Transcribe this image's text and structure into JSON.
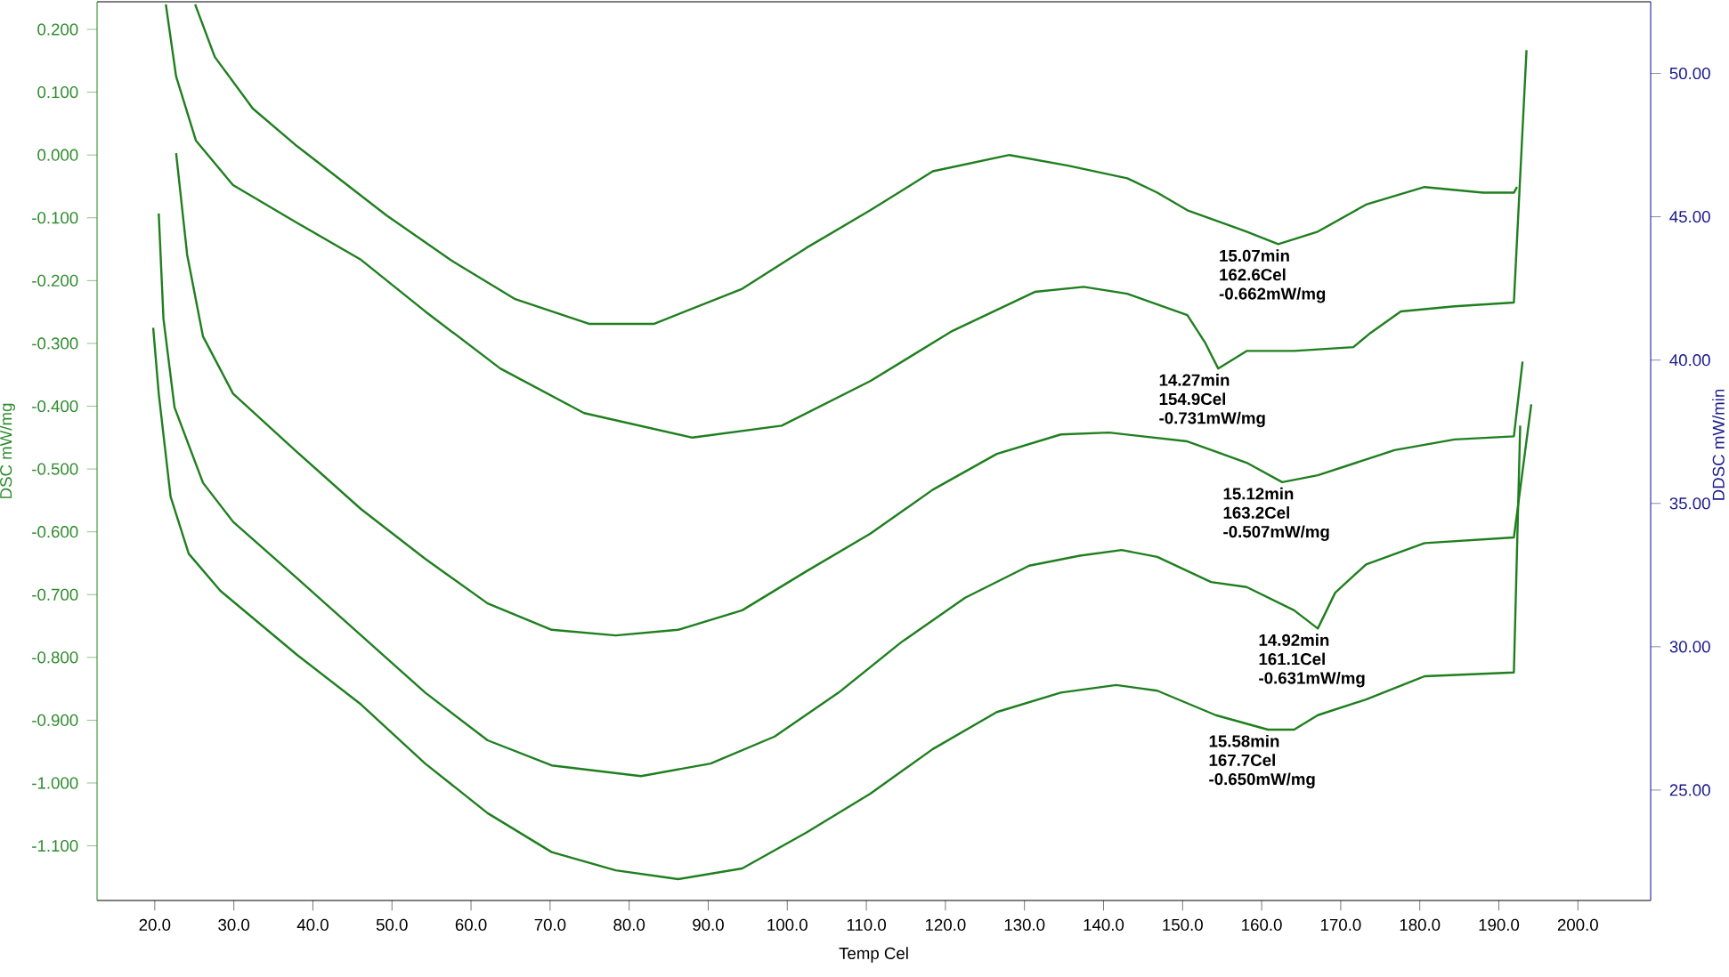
{
  "chart_data": {
    "type": "line",
    "xlabel": "Temp Cel",
    "ylabel": "DSC mW/mg",
    "y2label": "DDSC mW/min",
    "xlim": [
      12.7,
      209.2
    ],
    "ylim": [
      -1.187,
      0.244
    ],
    "y2lim": [
      21.15,
      52.5
    ],
    "xticks": [
      {
        "value": 20,
        "label": "20.0"
      },
      {
        "value": 30,
        "label": "30.0"
      },
      {
        "value": 40,
        "label": "40.0"
      },
      {
        "value": 50,
        "label": "50.0"
      },
      {
        "value": 60,
        "label": "60.0"
      },
      {
        "value": 70,
        "label": "70.0"
      },
      {
        "value": 80,
        "label": "80.0"
      },
      {
        "value": 90,
        "label": "90.0"
      },
      {
        "value": 100,
        "label": "100.0"
      },
      {
        "value": 110,
        "label": "110.0"
      },
      {
        "value": 120,
        "label": "120.0"
      },
      {
        "value": 130,
        "label": "130.0"
      },
      {
        "value": 140,
        "label": "140.0"
      },
      {
        "value": 150,
        "label": "150.0"
      },
      {
        "value": 160,
        "label": "160.0"
      },
      {
        "value": 170,
        "label": "170.0"
      },
      {
        "value": 180,
        "label": "180.0"
      },
      {
        "value": 190,
        "label": "190.0"
      },
      {
        "value": 200,
        "label": "200.0"
      }
    ],
    "yticks": [
      {
        "value": 0.2,
        "label": "0.200"
      },
      {
        "value": 0.1,
        "label": "0.100"
      },
      {
        "value": 0,
        "label": "0.000"
      },
      {
        "value": -0.1,
        "label": "-0.100"
      },
      {
        "value": -0.2,
        "label": "-0.200"
      },
      {
        "value": -0.3,
        "label": "-0.300"
      },
      {
        "value": -0.4,
        "label": "-0.400"
      },
      {
        "value": -0.5,
        "label": "-0.500"
      },
      {
        "value": -0.6,
        "label": "-0.600"
      },
      {
        "value": -0.7,
        "label": "-0.700"
      },
      {
        "value": -0.8,
        "label": "-0.800"
      },
      {
        "value": -0.9,
        "label": "-0.900"
      },
      {
        "value": -1.0,
        "label": "-1.000"
      },
      {
        "value": -1.1,
        "label": "-1.100"
      }
    ],
    "y2ticks": [
      {
        "value": 25,
        "label": "25.00"
      },
      {
        "value": 30,
        "label": "30.00"
      },
      {
        "value": 35,
        "label": "35.00"
      },
      {
        "value": 40,
        "label": "40.00"
      },
      {
        "value": 45,
        "label": "45.00"
      },
      {
        "value": 50,
        "label": "50.00"
      }
    ],
    "series": [
      {
        "color": "#1f7f1f",
        "x": [
          25.1,
          27.6,
          32.4,
          38.0,
          49.3,
          57.4,
          65.5,
          75.0,
          83.1,
          94.3,
          102.4,
          110.5,
          118.4,
          128.1,
          135.5,
          143.0,
          146.8,
          150.6,
          158.1,
          162.1,
          167.1,
          173.2,
          180.6,
          188.0,
          191.9,
          192.3
        ],
        "values": [
          0.24,
          0.156,
          0.074,
          0.014,
          -0.096,
          -0.167,
          -0.229,
          -0.269,
          -0.269,
          -0.213,
          -0.148,
          -0.088,
          -0.026,
          0.0,
          -0.017,
          -0.037,
          -0.06,
          -0.088,
          -0.122,
          -0.142,
          -0.122,
          -0.079,
          -0.051,
          -0.06,
          -0.06,
          -0.051
        ]
      },
      {
        "color": "#1f7f1f",
        "x": [
          21.4,
          22.7,
          25.2,
          29.9,
          38.0,
          46.1,
          54.2,
          63.7,
          74.3,
          88.0,
          99.3,
          110.5,
          120.9,
          131.3,
          137.5,
          143.0,
          150.6,
          152.9,
          154.5,
          158.1,
          164.1,
          171.6,
          173.8,
          177.6,
          184.4,
          191.9,
          193.5
        ],
        "values": [
          0.24,
          0.125,
          0.023,
          -0.048,
          -0.108,
          -0.167,
          -0.249,
          -0.34,
          -0.411,
          -0.45,
          -0.431,
          -0.36,
          -0.28,
          -0.218,
          -0.21,
          -0.221,
          -0.255,
          -0.3,
          -0.34,
          -0.312,
          -0.312,
          -0.306,
          -0.283,
          -0.249,
          -0.241,
          -0.235,
          0.167
        ]
      },
      {
        "color": "#1f7f1f",
        "x": [
          22.7,
          24.1,
          26.1,
          29.9,
          38.0,
          46.1,
          54.2,
          62.1,
          70.2,
          78.3,
          86.2,
          94.3,
          102.4,
          110.5,
          118.4,
          126.5,
          134.6,
          140.7,
          150.6,
          158.1,
          162.6,
          167.1,
          176.8,
          184.4,
          191.9,
          193.0
        ],
        "values": [
          0.003,
          -0.159,
          -0.289,
          -0.38,
          -0.473,
          -0.564,
          -0.643,
          -0.714,
          -0.756,
          -0.765,
          -0.756,
          -0.725,
          -0.663,
          -0.603,
          -0.533,
          -0.476,
          -0.445,
          -0.442,
          -0.456,
          -0.49,
          -0.521,
          -0.51,
          -0.47,
          -0.453,
          -0.448,
          -0.329
        ]
      },
      {
        "color": "#1f7f1f",
        "x": [
          20.5,
          21.1,
          22.5,
          26.1,
          29.9,
          38.0,
          46.1,
          54.2,
          62.1,
          70.2,
          81.5,
          90.3,
          98.4,
          106.5,
          114.4,
          122.5,
          130.6,
          137.0,
          142.3,
          146.8,
          153.6,
          158.1,
          164.1,
          167.1,
          169.3,
          173.2,
          180.6,
          191.9,
          194.1
        ],
        "values": [
          -0.093,
          -0.261,
          -0.402,
          -0.522,
          -0.584,
          -0.674,
          -0.765,
          -0.856,
          -0.932,
          -0.972,
          -0.989,
          -0.969,
          -0.926,
          -0.856,
          -0.776,
          -0.705,
          -0.654,
          -0.638,
          -0.629,
          -0.64,
          -0.68,
          -0.688,
          -0.725,
          -0.754,
          -0.697,
          -0.652,
          -0.618,
          -0.609,
          -0.397
        ]
      },
      {
        "color": "#1f7f1f",
        "x": [
          19.8,
          20.5,
          22.0,
          24.3,
          28.3,
          38.0,
          46.1,
          54.2,
          62.1,
          70.2,
          78.3,
          86.2,
          94.3,
          102.4,
          110.5,
          118.4,
          126.5,
          134.6,
          141.6,
          146.8,
          154.2,
          160.8,
          164.1,
          167.1,
          173.2,
          180.6,
          191.9,
          192.7
        ],
        "values": [
          -0.275,
          -0.38,
          -0.544,
          -0.635,
          -0.694,
          -0.796,
          -0.875,
          -0.969,
          -1.048,
          -1.11,
          -1.139,
          -1.153,
          -1.136,
          -1.079,
          -1.017,
          -0.946,
          -0.887,
          -0.856,
          -0.844,
          -0.853,
          -0.892,
          -0.915,
          -0.915,
          -0.892,
          -0.867,
          -0.83,
          -0.824,
          -0.431
        ]
      }
    ],
    "annotations": [
      {
        "text": "15.07min 162.6Cel -0.662mW/mg",
        "x": 162.1,
        "y": -0.142
      },
      {
        "text": "14.27min 154.9Cel -0.731mW/mg",
        "x": 154.5,
        "y": -0.34
      },
      {
        "text": "15.12min 163.2Cel -0.507mW/mg",
        "x": 162.6,
        "y": -0.521
      },
      {
        "text": "14.92min 161.1Cel -0.631mW/mg",
        "x": 167.1,
        "y": -0.754
      },
      {
        "text": "15.58min 167.7Cel -0.650mW/mg",
        "x": 160.8,
        "y": -0.915
      }
    ]
  }
}
